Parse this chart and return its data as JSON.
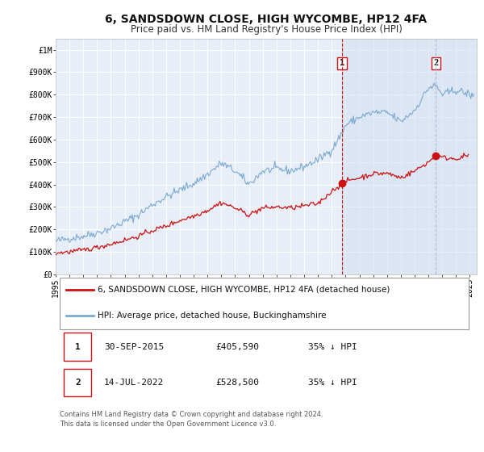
{
  "title": "6, SANDSDOWN CLOSE, HIGH WYCOMBE, HP12 4FA",
  "subtitle": "Price paid vs. HM Land Registry's House Price Index (HPI)",
  "background_color": "#ffffff",
  "plot_bg_color": "#e8eef8",
  "plot_bg_color2": "#dce6f5",
  "grid_color": "#ffffff",
  "hpi_color": "#7aaad0",
  "price_color": "#cc1111",
  "marker_color": "#cc1111",
  "vline1_color": "#cc1111",
  "vline2_color": "#aabbdd",
  "shade_color": "#d0ddf0",
  "xlim_min": 1995.0,
  "xlim_max": 2025.5,
  "ylim_min": 0,
  "ylim_max": 1050000,
  "yticks": [
    0,
    100000,
    200000,
    300000,
    400000,
    500000,
    600000,
    700000,
    800000,
    900000,
    1000000
  ],
  "ytick_labels": [
    "£0",
    "£100K",
    "£200K",
    "£300K",
    "£400K",
    "£500K",
    "£600K",
    "£700K",
    "£800K",
    "£900K",
    "£1M"
  ],
  "xticks": [
    1995,
    1996,
    1997,
    1998,
    1999,
    2000,
    2001,
    2002,
    2003,
    2004,
    2005,
    2006,
    2007,
    2008,
    2009,
    2010,
    2011,
    2012,
    2013,
    2014,
    2015,
    2016,
    2017,
    2018,
    2019,
    2020,
    2021,
    2022,
    2023,
    2024,
    2025
  ],
  "transaction1_x": 2015.75,
  "transaction1_y": 405590,
  "transaction1_label": "1",
  "transaction2_x": 2022.54,
  "transaction2_y": 528500,
  "transaction2_label": "2",
  "legend_line1": "6, SANDSDOWN CLOSE, HIGH WYCOMBE, HP12 4FA (detached house)",
  "legend_line2": "HPI: Average price, detached house, Buckinghamshire",
  "table_row1": [
    "1",
    "30-SEP-2015",
    "£405,590",
    "35% ↓ HPI"
  ],
  "table_row2": [
    "2",
    "14-JUL-2022",
    "£528,500",
    "35% ↓ HPI"
  ],
  "footnote": "Contains HM Land Registry data © Crown copyright and database right 2024.\nThis data is licensed under the Open Government Licence v3.0.",
  "title_fontsize": 10,
  "subtitle_fontsize": 8.5,
  "tick_fontsize": 7,
  "legend_fontsize": 7.5,
  "table_fontsize": 8,
  "footnote_fontsize": 6
}
